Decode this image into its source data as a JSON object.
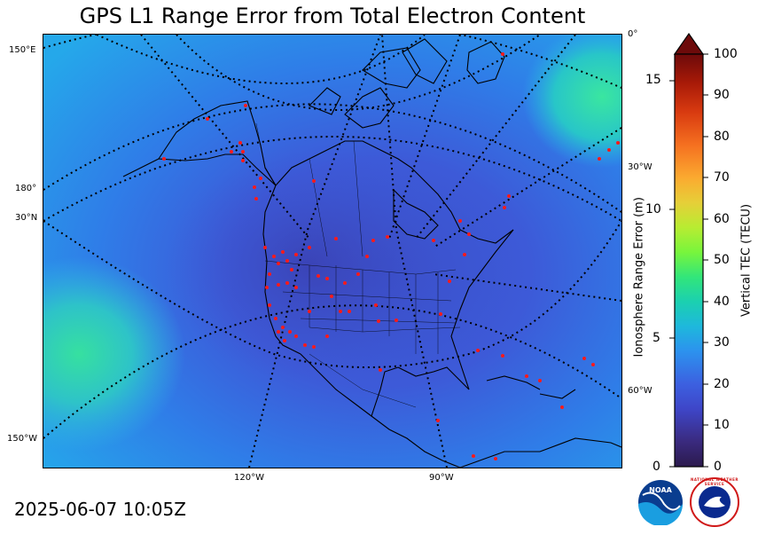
{
  "title": "GPS L1 Range Error from Total Electron Content",
  "timestamp": "2025-06-07 10:05Z",
  "map": {
    "graticule_labels": {
      "left": [
        "150°E",
        "180°",
        "30°N",
        "150°W"
      ],
      "bottom": [
        "120°W",
        "90°W"
      ],
      "right": [
        "0°",
        "30°W",
        "60°W"
      ]
    },
    "colors": {
      "ocean_low": "#3f58d6",
      "ocean_mid": "#2c8ef0",
      "ocean_high": "#2fd6a8",
      "coast": "#000000",
      "stations": "#ff1a1a"
    }
  },
  "left_axis": {
    "label": "Ionosphere Range Error (m)",
    "ticks": [
      "0",
      "5",
      "10",
      "15"
    ]
  },
  "colorbar": {
    "label": "Vertical TEC (TECU)",
    "ticks": [
      "0",
      "10",
      "20",
      "30",
      "40",
      "50",
      "60",
      "70",
      "80",
      "90",
      "100"
    ],
    "extend": "max"
  },
  "logos": {
    "noaa_text": "NOAA",
    "nws_text": "NATIONAL WEATHER SERVICE"
  }
}
